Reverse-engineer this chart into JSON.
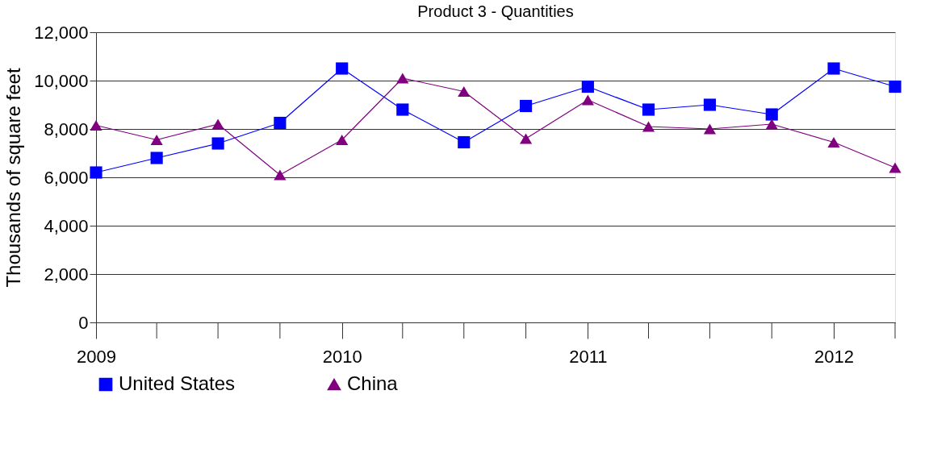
{
  "chart_data": {
    "type": "line",
    "title": "Product 3 - Quantities",
    "ylabel": "Thousands of square feet",
    "x": [
      "2009-01",
      "2009-04",
      "2009-07",
      "2009-10",
      "2010-01",
      "2010-04",
      "2010-07",
      "2010-10",
      "2011-01",
      "2011-04",
      "2011-07",
      "2011-10",
      "2012-01",
      "2012-04"
    ],
    "series": [
      {
        "name": "United States",
        "color": "#0000ff",
        "marker": "square",
        "values": [
          6200,
          6800,
          7400,
          8250,
          10500,
          8800,
          7450,
          8950,
          9750,
          8800,
          9000,
          8600,
          10500,
          9750
        ]
      },
      {
        "name": "China",
        "color": "#800080",
        "marker": "triangle",
        "values": [
          8150,
          7550,
          8200,
          6100,
          7550,
          10100,
          9550,
          7600,
          9200,
          8100,
          8000,
          8200,
          7450,
          6400
        ]
      }
    ],
    "xlim": [
      "2009-01",
      "2012-04"
    ],
    "xticks": [
      "2009",
      "2010",
      "2011",
      "2012"
    ],
    "ylim": [
      0,
      12000
    ],
    "yticks": [
      0,
      {
        "value": 2000,
        "label": "2,000"
      },
      {
        "value": 4000,
        "label": "4,000"
      },
      {
        "value": 6000,
        "label": "6,000"
      },
      {
        "value": 8000,
        "label": "8,000"
      },
      {
        "value": 10000,
        "label": "10,000"
      },
      {
        "value": 12000,
        "label": "12,000"
      }
    ],
    "grid": "y",
    "legend": "bottom",
    "line_style": "solid"
  }
}
